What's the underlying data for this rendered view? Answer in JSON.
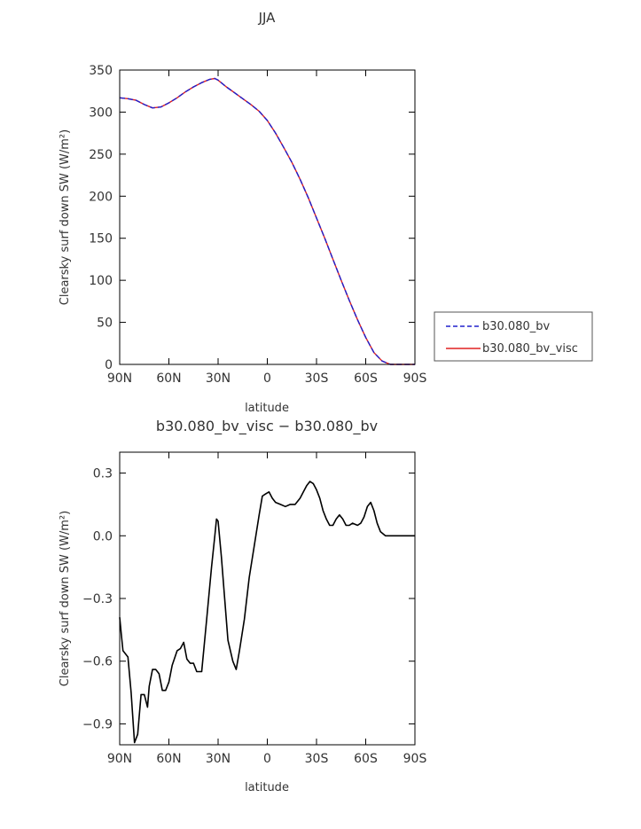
{
  "chart_data": [
    {
      "type": "line",
      "title": "JJA",
      "xlabel": "latitude",
      "ylabel": "Clearsky surf down SW (W/m²)",
      "xlim": [
        90,
        -90
      ],
      "ylim": [
        0,
        350
      ],
      "x_ticks": [
        90,
        60,
        30,
        0,
        -30,
        -60,
        -90
      ],
      "x_tick_labels": [
        "90N",
        "60N",
        "30N",
        "0",
        "30S",
        "60S",
        "90S"
      ],
      "y_ticks": [
        0,
        50,
        100,
        150,
        200,
        250,
        300,
        350
      ],
      "y_tick_labels": [
        "0",
        "50",
        "100",
        "150",
        "200",
        "250",
        "300",
        "350"
      ],
      "legend_placement": "right",
      "x": [
        90,
        85,
        80,
        75,
        70,
        65,
        60,
        55,
        50,
        45,
        40,
        35,
        32,
        30,
        25,
        20,
        15,
        10,
        5,
        0,
        -5,
        -10,
        -15,
        -20,
        -25,
        -30,
        -35,
        -40,
        -45,
        -50,
        -55,
        -60,
        -65,
        -70,
        -75,
        -80,
        -85,
        -90
      ],
      "series": [
        {
          "name": "b30.080_bv",
          "color": "#2020cc",
          "dash": true,
          "values": [
            317,
            316,
            314,
            309,
            305,
            306,
            311,
            317,
            324,
            330,
            335,
            339,
            340,
            338,
            330,
            323,
            316,
            309,
            301,
            290,
            275,
            258,
            240,
            220,
            198,
            174,
            150,
            125,
            100,
            76,
            53,
            32,
            14,
            4,
            0,
            0,
            0,
            0
          ]
        },
        {
          "name": "b30.080_bv_visc",
          "color": "#e02020",
          "dash": false,
          "values": [
            317,
            316,
            314,
            309,
            305,
            306,
            311,
            317,
            324,
            330,
            335,
            339,
            340,
            338,
            330,
            323,
            316,
            309,
            301,
            290,
            275,
            258,
            240,
            220,
            198,
            174,
            150,
            125,
            100,
            76,
            53,
            32,
            14,
            4,
            0,
            0,
            0,
            0
          ]
        }
      ]
    },
    {
      "type": "line",
      "title": "b30.080_bv_visc − b30.080_bv",
      "xlabel": "latitude",
      "ylabel": "Clearsky surf down SW (W/m²)",
      "xlim": [
        90,
        -90
      ],
      "ylim": [
        -1.0,
        0.4
      ],
      "x_ticks": [
        90,
        60,
        30,
        0,
        -30,
        -60,
        -90
      ],
      "x_tick_labels": [
        "90N",
        "60N",
        "30N",
        "0",
        "30S",
        "60S",
        "90S"
      ],
      "y_ticks": [
        0.3,
        0.0,
        -0.3,
        -0.6,
        -0.9
      ],
      "y_tick_labels": [
        "0.3",
        "0.0",
        "−0.3",
        "−0.6",
        "−0.9"
      ],
      "x": [
        90,
        89,
        88,
        85,
        83,
        81,
        79,
        77,
        75,
        73,
        72,
        70,
        68,
        66,
        64,
        62,
        60,
        58,
        55,
        53,
        51,
        49,
        47,
        45,
        43,
        40,
        37,
        34,
        32,
        31,
        30,
        28,
        26,
        24,
        21,
        19,
        17,
        14,
        11,
        8,
        5,
        3,
        1,
        -1,
        -3,
        -5,
        -8,
        -11,
        -14,
        -17,
        -20,
        -22,
        -24,
        -26,
        -28,
        -30,
        -32,
        -34,
        -36,
        -38,
        -40,
        -42,
        -44,
        -46,
        -48,
        -50,
        -52,
        -55,
        -57,
        -59,
        -61,
        -63,
        -65,
        -67,
        -69,
        -72,
        -75,
        -80,
        -85,
        -90
      ],
      "series": [
        {
          "color": "#000000",
          "values": [
            -0.39,
            -0.47,
            -0.55,
            -0.58,
            -0.75,
            -0.99,
            -0.95,
            -0.76,
            -0.76,
            -0.82,
            -0.72,
            -0.64,
            -0.64,
            -0.66,
            -0.74,
            -0.74,
            -0.7,
            -0.62,
            -0.55,
            -0.54,
            -0.51,
            -0.59,
            -0.61,
            -0.61,
            -0.65,
            -0.65,
            -0.4,
            -0.15,
            0.0,
            0.08,
            0.07,
            -0.1,
            -0.3,
            -0.5,
            -0.6,
            -0.64,
            -0.55,
            -0.4,
            -0.2,
            -0.05,
            0.1,
            0.19,
            0.2,
            0.21,
            0.18,
            0.16,
            0.15,
            0.14,
            0.15,
            0.15,
            0.18,
            0.21,
            0.24,
            0.26,
            0.25,
            0.22,
            0.18,
            0.12,
            0.08,
            0.05,
            0.05,
            0.08,
            0.1,
            0.08,
            0.05,
            0.05,
            0.06,
            0.05,
            0.06,
            0.09,
            0.14,
            0.16,
            0.12,
            0.06,
            0.02,
            0.0,
            0.0,
            0.0,
            0.0,
            0.0
          ]
        }
      ]
    }
  ]
}
